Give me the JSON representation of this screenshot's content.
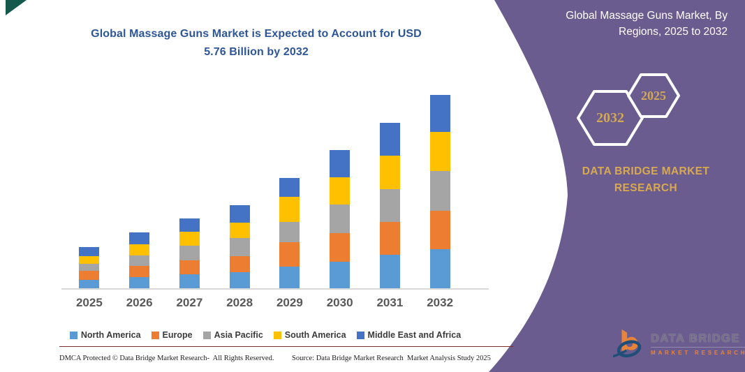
{
  "colors": {
    "panel_purple": "#6A5C8E",
    "gold": "#D9A951",
    "title_blue": "#2E5697",
    "axis_label_gray": "#595959",
    "axis_line_gray": "#D9D9D9",
    "divider_red": "#7E2B2B",
    "corner_teal": "#15594C",
    "logo_orange": "#E8833A",
    "logo_navy": "#1F4E79"
  },
  "chart": {
    "title_line1": "Global Massage Guns Market is Expected to Account for USD",
    "title_line2": "5.76 Billion by 2032"
  },
  "chart_data": {
    "type": "bar",
    "stacked": true,
    "title": "Global Massage Guns Market is Expected to Account for USD 5.76 Billion by 2032",
    "unit": "USD Billion",
    "categories": [
      "2025",
      "2026",
      "2027",
      "2028",
      "2029",
      "2030",
      "2031",
      "2032"
    ],
    "series": [
      {
        "name": "North America",
        "color": "#5B9BD5",
        "values": [
          0.26,
          0.33,
          0.42,
          0.49,
          0.64,
          0.79,
          1.0,
          1.16
        ]
      },
      {
        "name": "Europe",
        "color": "#ED7D31",
        "values": [
          0.26,
          0.33,
          0.42,
          0.47,
          0.74,
          0.85,
          0.99,
          1.16
        ]
      },
      {
        "name": "Asia Pacific",
        "color": "#A5A5A5",
        "values": [
          0.21,
          0.33,
          0.42,
          0.55,
          0.6,
          0.87,
          0.97,
          1.17
        ]
      },
      {
        "name": "South America",
        "color": "#FFC000",
        "values": [
          0.22,
          0.33,
          0.42,
          0.45,
          0.75,
          0.8,
          0.99,
          1.17
        ]
      },
      {
        "name": "Middle East and Africa",
        "color": "#4472C4",
        "values": [
          0.28,
          0.35,
          0.4,
          0.52,
          0.57,
          0.81,
          0.99,
          1.1
        ]
      }
    ],
    "totals": [
      1.23,
      1.67,
      2.08,
      2.48,
      3.3,
      4.12,
      4.94,
      5.76
    ],
    "ylim": [
      0,
      5.9
    ],
    "gridlines": false,
    "y_axis_visible": false,
    "legend_position": "bottom"
  },
  "panel": {
    "title_line1": "Global Massage Guns Market, By",
    "title_line2": "Regions, 2025 to 2032",
    "hex_large_year": "2032",
    "hex_small_year": "2025",
    "brand_line1": "DATA BRIDGE MARKET",
    "brand_line2": "RESEARCH",
    "logo_main": "DATA BRIDGE",
    "logo_sub": "MARKET RESEARCH"
  },
  "footer": {
    "left": "DMCA Protected © Data Bridge Market Research-  All Rights Reserved.",
    "right": "Source: Data Bridge Market Research  Market Analysis Study 2025"
  }
}
